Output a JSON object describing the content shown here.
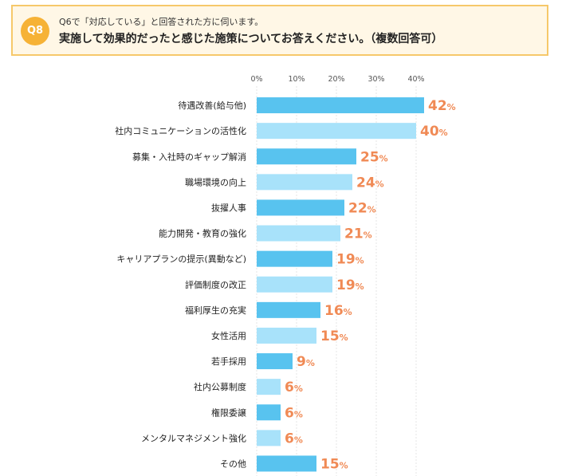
{
  "question": {
    "badge": "Q8",
    "subtitle": "Q6で「対応している」と回答された方に伺います。",
    "title": "実施して効果的だったと感じた施策についてお答えください。（複数回答可）"
  },
  "colors": {
    "dark_bar": "#58c3ef",
    "light_bar": "#a8e2fa",
    "value_text": "#f08a55",
    "badge": "#f6b236",
    "box_border": "#f6c86a",
    "box_fill": "#fff7e6"
  },
  "chart_data": {
    "type": "bar",
    "orientation": "horizontal",
    "categories": [
      "待遇改善(給与他)",
      "社内コミュニケーションの活性化",
      "募集・入社時のギャップ解消",
      "職場環境の向上",
      "抜擢人事",
      "能力開発・教育の強化",
      "キャリアプランの提示(異動など)",
      "評価制度の改正",
      "福利厚生の充実",
      "女性活用",
      "若手採用",
      "社内公募制度",
      "権限委譲",
      "メンタルマネジメント強化",
      "その他"
    ],
    "values": [
      42,
      40,
      25,
      24,
      22,
      21,
      19,
      19,
      16,
      15,
      9,
      6,
      6,
      6,
      15
    ],
    "value_unit": "%",
    "xticks": [
      "0%",
      "10%",
      "20%",
      "30%",
      "40%"
    ],
    "xlim": [
      0,
      45
    ],
    "grid": true
  }
}
